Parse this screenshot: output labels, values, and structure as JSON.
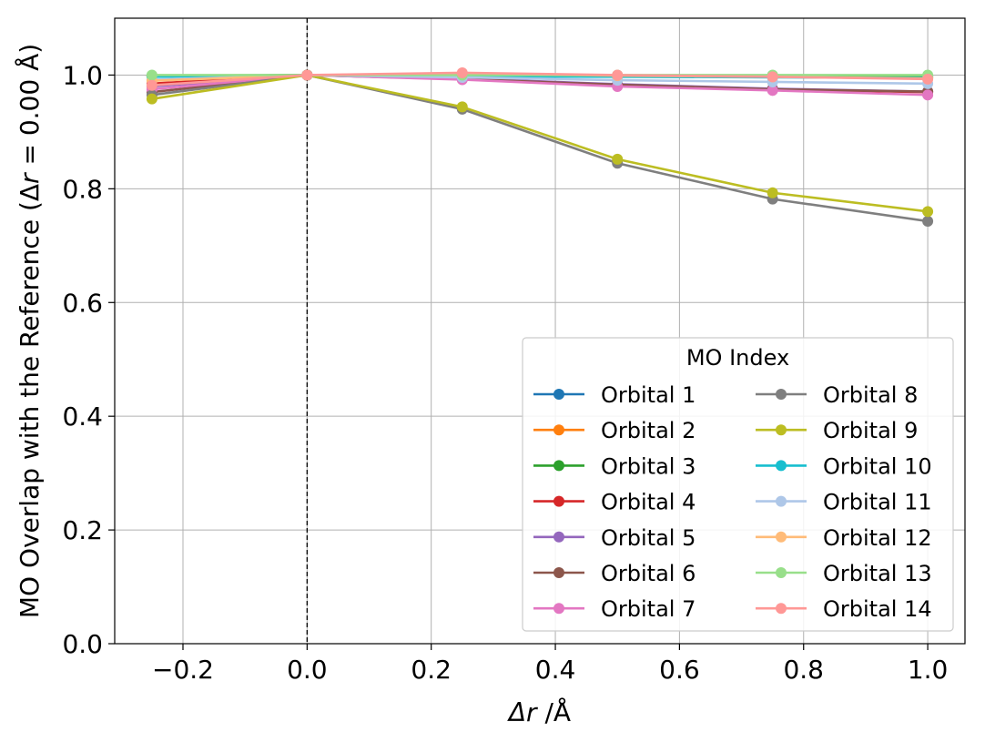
{
  "chart_data": {
    "type": "line",
    "title": "",
    "xlabel_symbol": "Δr",
    "xlabel_unit": " /Å",
    "ylabel_prefix": "MO Overlap with the Reference (Δ",
    "ylabel_var": "r",
    "ylabel_suffix": " = 0.00 Å)",
    "xlim": [
      -0.31,
      1.06
    ],
    "ylim": [
      0.0,
      1.1
    ],
    "xticks": [
      -0.2,
      0.0,
      0.2,
      0.4,
      0.6,
      0.8,
      1.0
    ],
    "xtick_labels": [
      "−0.2",
      "0.0",
      "0.2",
      "0.4",
      "0.6",
      "0.8",
      "1.0"
    ],
    "yticks": [
      0.0,
      0.2,
      0.4,
      0.6,
      0.8,
      1.0
    ],
    "ytick_labels": [
      "0.0",
      "0.2",
      "0.4",
      "0.6",
      "0.8",
      "1.0"
    ],
    "grid": true,
    "reference_line_x": 0.0,
    "legend": {
      "title": "MO Index",
      "placement": "lower-right",
      "columns": 2
    },
    "x": [
      -0.25,
      0.0,
      0.25,
      0.5,
      0.75,
      1.0
    ],
    "series": [
      {
        "name": "Orbital 1",
        "color": "#1f77b4",
        "values": [
          0.998,
          1.0,
          0.999,
          0.999,
          0.998,
          0.997
        ]
      },
      {
        "name": "Orbital 2",
        "color": "#ff7f0e",
        "values": [
          0.998,
          1.0,
          0.999,
          0.998,
          0.998,
          0.997
        ]
      },
      {
        "name": "Orbital 3",
        "color": "#2ca02c",
        "values": [
          0.999,
          1.0,
          0.999,
          0.999,
          0.999,
          0.998
        ]
      },
      {
        "name": "Orbital 4",
        "color": "#d62728",
        "values": [
          0.985,
          1.0,
          0.993,
          0.982,
          0.975,
          0.97
        ]
      },
      {
        "name": "Orbital 5",
        "color": "#9467bd",
        "values": [
          0.98,
          1.0,
          0.994,
          0.984,
          0.976,
          0.971
        ]
      },
      {
        "name": "Orbital 6",
        "color": "#8c564b",
        "values": [
          0.97,
          1.0,
          0.993,
          0.983,
          0.975,
          0.971
        ]
      },
      {
        "name": "Orbital 7",
        "color": "#e377c2",
        "values": [
          0.975,
          1.0,
          0.992,
          0.98,
          0.973,
          0.965
        ]
      },
      {
        "name": "Orbital 8",
        "color": "#7f7f7f",
        "values": [
          0.965,
          1.0,
          0.94,
          0.845,
          0.782,
          0.743
        ]
      },
      {
        "name": "Orbital 9",
        "color": "#bcbd22",
        "values": [
          0.958,
          1.0,
          0.944,
          0.852,
          0.793,
          0.76
        ]
      },
      {
        "name": "Orbital 10",
        "color": "#17becf",
        "values": [
          0.997,
          1.0,
          0.998,
          0.997,
          0.996,
          0.995
        ]
      },
      {
        "name": "Orbital 11",
        "color": "#aec7e8",
        "values": [
          0.992,
          1.0,
          0.996,
          0.991,
          0.988,
          0.985
        ]
      },
      {
        "name": "Orbital 12",
        "color": "#ffbb78",
        "values": [
          0.99,
          1.0,
          1.002,
          0.999,
          0.997,
          0.994
        ]
      },
      {
        "name": "Orbital 13",
        "color": "#98df8a",
        "values": [
          1.0,
          1.0,
          1.0,
          1.0,
          1.0,
          1.0
        ]
      },
      {
        "name": "Orbital 14",
        "color": "#ff9896",
        "values": [
          0.982,
          1.0,
          1.004,
          1.0,
          0.997,
          0.993
        ]
      }
    ]
  }
}
